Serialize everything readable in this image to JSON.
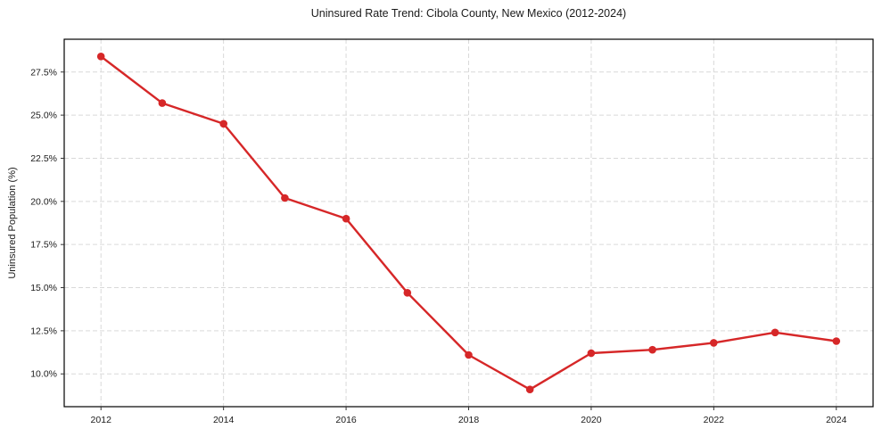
{
  "chart_data": {
    "type": "line",
    "title": "Uninsured Rate Trend: Cibola County, New Mexico (2012-2024)",
    "xlabel": "",
    "ylabel": "Uninsured Population (%)",
    "x": [
      2012,
      2013,
      2014,
      2015,
      2016,
      2017,
      2018,
      2019,
      2020,
      2021,
      2022,
      2023,
      2024
    ],
    "values": [
      28.4,
      25.7,
      24.5,
      20.2,
      19.0,
      14.7,
      11.1,
      9.1,
      11.2,
      11.4,
      11.8,
      12.4,
      11.9
    ],
    "xlim": [
      2011.4,
      2024.6
    ],
    "ylim": [
      8.1,
      29.4
    ],
    "xticks": {
      "values": [
        2012,
        2014,
        2016,
        2018,
        2020,
        2022,
        2024
      ],
      "labels": [
        "2012",
        "2014",
        "2016",
        "2018",
        "2020",
        "2022",
        "2024"
      ]
    },
    "yticks": {
      "values": [
        10.0,
        12.5,
        15.0,
        17.5,
        20.0,
        22.5,
        25.0,
        27.5
      ],
      "labels": [
        "10.0%",
        "12.5%",
        "15.0%",
        "17.5%",
        "20.0%",
        "22.5%",
        "25.0%",
        "27.5%"
      ]
    },
    "grid": true,
    "legend": "none",
    "line_color": "#d62728",
    "grid_color": "#d9d9d9",
    "marker": "circle"
  }
}
